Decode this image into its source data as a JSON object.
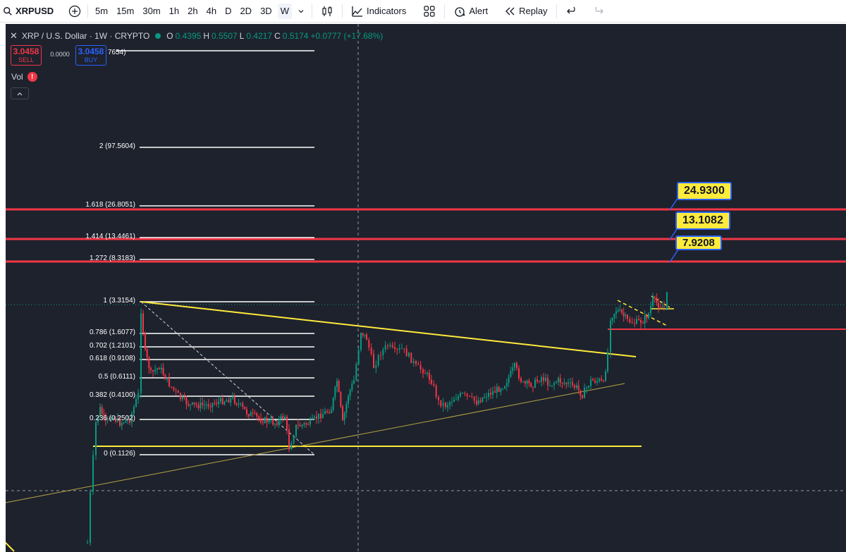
{
  "toolbar": {
    "symbol": "XRPUSD",
    "intervals": [
      "5m",
      "15m",
      "30m",
      "1h",
      "2h",
      "4h",
      "D",
      "2D",
      "3D",
      "W"
    ],
    "active_interval": "W",
    "indicators_label": "Indicators",
    "alert_label": "Alert",
    "replay_label": "Replay"
  },
  "legend": {
    "title": "XRP / U.S. Dollar · 1W · CRYPTO",
    "o_label": "O",
    "o_value": "0.4395",
    "h_label": "H",
    "h_value": "0.5507",
    "l_label": "L",
    "l_value": "0.4217",
    "c_label": "C",
    "c_value": "0.5174",
    "change": "+0.0777 (+17.68%)"
  },
  "trade": {
    "sell_price": "3.0458",
    "sell_label": "SELL",
    "spread": "0.0000",
    "buy_price": "3.0458",
    "buy_label": "BUY",
    "hidden_text": "7654)"
  },
  "vol_label": "Vol",
  "fib_levels": [
    {
      "label": "2 (97.5604)"
    },
    {
      "label": "1.618 (26.8051)"
    },
    {
      "label": "1.414 (13.4461)"
    },
    {
      "label": "1.272 (8.3183)"
    },
    {
      "label": "1 (3.3154)"
    },
    {
      "label": "0.786 (1.6077)"
    },
    {
      "label": "0.702 (1.2101)"
    },
    {
      "label": "0.618 (0.9108)"
    },
    {
      "label": "0.5 (0.6111)"
    },
    {
      "label": "0.382 (0.4100)"
    },
    {
      "label": "0.236 (0.2502)"
    },
    {
      "label": "0 (0.1126)"
    }
  ],
  "callouts": [
    {
      "text": "24.9300"
    },
    {
      "text": "13.1082"
    },
    {
      "text": "7.9208"
    }
  ],
  "colors": {
    "chart_bg": "#1e222d",
    "up": "#089981",
    "down": "#f23645",
    "target_line": "#f23645",
    "trend_line": "#ffeb3b",
    "fib_line": "#ffffff",
    "callout_bg": "#ffeb3b",
    "callout_border": "#2962ff"
  }
}
